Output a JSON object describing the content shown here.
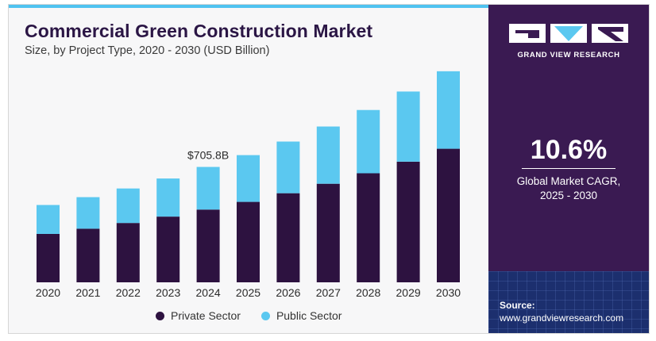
{
  "header": {
    "title": "Commercial Green Construction Market",
    "subtitle": "Size, by Project Type, 2020 - 2030 (USD Billion)"
  },
  "colors": {
    "private": "#2d1240",
    "public": "#5bc8f0",
    "panel": "#3a1a52",
    "accent": "#4fc3f0"
  },
  "chart_data": {
    "type": "bar",
    "stacked": true,
    "categories": [
      "2020",
      "2021",
      "2022",
      "2023",
      "2024",
      "2025",
      "2026",
      "2027",
      "2028",
      "2029",
      "2030"
    ],
    "series": [
      {
        "name": "Private Sector",
        "values": [
          296,
          328,
          363,
          402,
          445,
          492,
          545,
          603,
          667,
          738,
          817
        ]
      },
      {
        "name": "Public Sector",
        "values": [
          177,
          193,
          211,
          233,
          260.8,
          286,
          316,
          350,
          387,
          429,
          474
        ]
      }
    ],
    "annotations": [
      {
        "category": "2024",
        "label": "$705.8B"
      }
    ],
    "ylim": [
      0,
      1300
    ],
    "legend_position": "bottom",
    "grid": false
  },
  "legend": {
    "private_label": "Private Sector",
    "public_label": "Public Sector"
  },
  "side_panel": {
    "brand": "GRAND VIEW RESEARCH",
    "cagr_value": "10.6%",
    "cagr_label_line1": "Global Market CAGR,",
    "cagr_label_line2": "2025 - 2030",
    "source_label": "Source:",
    "source_url": "www.grandviewresearch.com"
  }
}
